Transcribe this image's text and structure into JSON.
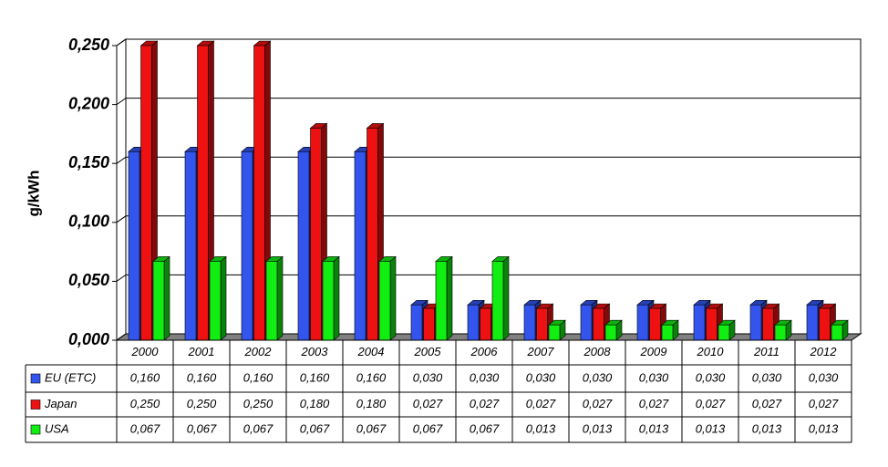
{
  "chart_data": {
    "type": "bar3d",
    "y_label": "g/kWh",
    "categories": [
      "2000",
      "2001",
      "2002",
      "2003",
      "2004",
      "2005",
      "2006",
      "2007",
      "2008",
      "2009",
      "2010",
      "2011",
      "2012"
    ],
    "series": [
      {
        "name": "EU (ETC)",
        "color": "#3355ee",
        "values": [
          0.16,
          0.16,
          0.16,
          0.16,
          0.16,
          0.03,
          0.03,
          0.03,
          0.03,
          0.03,
          0.03,
          0.03,
          0.03
        ],
        "value_labels": [
          "0,160",
          "0,160",
          "0,160",
          "0,160",
          "0,160",
          "0,030",
          "0,030",
          "0,030",
          "0,030",
          "0,030",
          "0,030",
          "0,030",
          "0,030"
        ]
      },
      {
        "name": "Japan",
        "color": "#ee1111",
        "values": [
          0.25,
          0.25,
          0.25,
          0.18,
          0.18,
          0.027,
          0.027,
          0.027,
          0.027,
          0.027,
          0.027,
          0.027,
          0.027
        ],
        "value_labels": [
          "0,250",
          "0,250",
          "0,250",
          "0,180",
          "0,180",
          "0,027",
          "0,027",
          "0,027",
          "0,027",
          "0,027",
          "0,027",
          "0,027",
          "0,027"
        ]
      },
      {
        "name": "USA",
        "color": "#11ee11",
        "values": [
          0.067,
          0.067,
          0.067,
          0.067,
          0.067,
          0.067,
          0.067,
          0.013,
          0.013,
          0.013,
          0.013,
          0.013,
          0.013
        ],
        "value_labels": [
          "0,067",
          "0,067",
          "0,067",
          "0,067",
          "0,067",
          "0,067",
          "0,067",
          "0,013",
          "0,013",
          "0,013",
          "0,013",
          "0,013",
          "0,013"
        ]
      }
    ],
    "ylim": [
      0,
      0.25
    ],
    "yticks": [
      {
        "value": 0,
        "label": "0,000"
      },
      {
        "value": 0.05,
        "label": "0,050"
      },
      {
        "value": 0.1,
        "label": "0,100"
      },
      {
        "value": 0.15,
        "label": "0,150"
      },
      {
        "value": 0.2,
        "label": "0,200"
      },
      {
        "value": 0.25,
        "label": "0,250"
      }
    ],
    "grid": true
  }
}
